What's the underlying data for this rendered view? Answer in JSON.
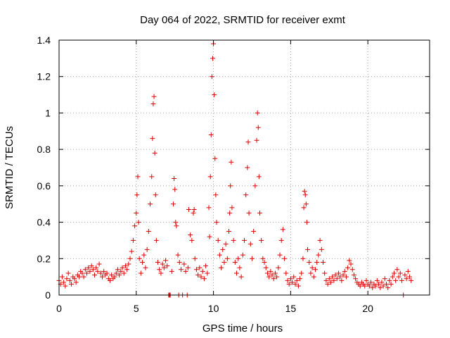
{
  "chart_data": {
    "type": "scatter",
    "title": "Day 064 of 2022, SRMTID for receiver exmt",
    "xlabel": "GPS time / hours",
    "ylabel": "SRMTID / TECUs",
    "xlim": [
      0,
      24
    ],
    "ylim": [
      0,
      1.4
    ],
    "xticks": [
      0,
      5,
      10,
      15,
      20
    ],
    "xtick_labels": [
      "0",
      "5",
      "10",
      "15",
      "20"
    ],
    "yticks": [
      0,
      0.2,
      0.4,
      0.6,
      0.8,
      1,
      1.2,
      1.4
    ],
    "ytick_labels": [
      "0",
      "0.2",
      "0.4",
      "0.6",
      "0.8",
      "1",
      "1.2",
      "1.4"
    ],
    "grid": true,
    "marker": "+",
    "color": "#e00000",
    "series": [
      {
        "name": "SRMTID",
        "points": [
          [
            0.0,
            0.08
          ],
          [
            0.1,
            0.06
          ],
          [
            0.2,
            0.1
          ],
          [
            0.3,
            0.07
          ],
          [
            0.4,
            0.05
          ],
          [
            0.5,
            0.09
          ],
          [
            0.6,
            0.12
          ],
          [
            0.7,
            0.08
          ],
          [
            0.8,
            0.06
          ],
          [
            0.9,
            0.1
          ],
          [
            1.0,
            0.09
          ],
          [
            1.1,
            0.07
          ],
          [
            1.2,
            0.11
          ],
          [
            1.3,
            0.1
          ],
          [
            1.4,
            0.13
          ],
          [
            1.5,
            0.12
          ],
          [
            1.6,
            0.1
          ],
          [
            1.7,
            0.14
          ],
          [
            1.8,
            0.12
          ],
          [
            1.9,
            0.15
          ],
          [
            2.0,
            0.13
          ],
          [
            2.1,
            0.16
          ],
          [
            2.2,
            0.14
          ],
          [
            2.3,
            0.11
          ],
          [
            2.4,
            0.15
          ],
          [
            2.5,
            0.13
          ],
          [
            2.6,
            0.17
          ],
          [
            2.7,
            0.12
          ],
          [
            2.8,
            0.1
          ],
          [
            2.9,
            0.13
          ],
          [
            3.0,
            0.11
          ],
          [
            3.1,
            0.12
          ],
          [
            3.2,
            0.09
          ],
          [
            3.3,
            0.08
          ],
          [
            3.4,
            0.11
          ],
          [
            3.5,
            0.09
          ],
          [
            3.6,
            0.1
          ],
          [
            3.7,
            0.12
          ],
          [
            3.8,
            0.14
          ],
          [
            3.9,
            0.11
          ],
          [
            4.0,
            0.13
          ],
          [
            4.1,
            0.15
          ],
          [
            4.2,
            0.12
          ],
          [
            4.3,
            0.16
          ],
          [
            4.4,
            0.14
          ],
          [
            4.5,
            0.17
          ],
          [
            4.6,
            0.2
          ],
          [
            4.7,
            0.24
          ],
          [
            4.8,
            0.3
          ],
          [
            4.9,
            0.38
          ],
          [
            5.0,
            0.45
          ],
          [
            5.05,
            0.55
          ],
          [
            5.1,
            0.65
          ],
          [
            5.15,
            0.4
          ],
          [
            5.2,
            0.2
          ],
          [
            5.3,
            0.12
          ],
          [
            5.4,
            0.18
          ],
          [
            5.5,
            0.22
          ],
          [
            5.6,
            0.15
          ],
          [
            5.7,
            0.25
          ],
          [
            5.8,
            0.35
          ],
          [
            5.9,
            0.5
          ],
          [
            6.0,
            0.65
          ],
          [
            6.05,
            0.86
          ],
          [
            6.1,
            1.05
          ],
          [
            6.15,
            1.09
          ],
          [
            6.2,
            0.78
          ],
          [
            6.25,
            0.55
          ],
          [
            6.3,
            0.3
          ],
          [
            6.4,
            0.18
          ],
          [
            6.5,
            0.14
          ],
          [
            6.6,
            0.12
          ],
          [
            6.7,
            0.17
          ],
          [
            6.8,
            0.15
          ],
          [
            6.9,
            0.19
          ],
          [
            7.0,
            0.16
          ],
          [
            7.1,
            0.0
          ],
          [
            7.15,
            0.0
          ],
          [
            7.2,
            0.0
          ],
          [
            7.3,
            0.13
          ],
          [
            7.4,
            0.5
          ],
          [
            7.45,
            0.64
          ],
          [
            7.5,
            0.58
          ],
          [
            7.55,
            0.4
          ],
          [
            7.6,
            0.38
          ],
          [
            7.7,
            0.22
          ],
          [
            7.75,
            0.0
          ],
          [
            7.8,
            0.18
          ],
          [
            7.9,
            0.14
          ],
          [
            8.0,
            0.0
          ],
          [
            8.1,
            0.17
          ],
          [
            8.2,
            0.13
          ],
          [
            8.3,
            0.0
          ],
          [
            8.35,
            0.15
          ],
          [
            8.4,
            0.47
          ],
          [
            8.5,
            0.33
          ],
          [
            8.6,
            0.3
          ],
          [
            8.7,
            0.45
          ],
          [
            8.75,
            0.47
          ],
          [
            8.8,
            0.2
          ],
          [
            8.9,
            0.14
          ],
          [
            9.0,
            0.11
          ],
          [
            9.1,
            0.15
          ],
          [
            9.2,
            0.1
          ],
          [
            9.3,
            0.13
          ],
          [
            9.4,
            0.09
          ],
          [
            9.5,
            0.16
          ],
          [
            9.6,
            0.12
          ],
          [
            9.7,
            0.48
          ],
          [
            9.75,
            0.32
          ],
          [
            9.8,
            0.65
          ],
          [
            9.85,
            0.88
          ],
          [
            9.9,
            1.2
          ],
          [
            9.95,
            1.3
          ],
          [
            10.0,
            1.38
          ],
          [
            10.05,
            1.1
          ],
          [
            10.1,
            0.75
          ],
          [
            10.15,
            0.55
          ],
          [
            10.2,
            0.4
          ],
          [
            10.3,
            0.3
          ],
          [
            10.4,
            0.22
          ],
          [
            10.5,
            0.15
          ],
          [
            10.6,
            0.25
          ],
          [
            10.7,
            0.18
          ],
          [
            10.8,
            0.28
          ],
          [
            10.9,
            0.2
          ],
          [
            11.0,
            0.35
          ],
          [
            11.05,
            0.45
          ],
          [
            11.1,
            0.6
          ],
          [
            11.15,
            0.73
          ],
          [
            11.2,
            0.48
          ],
          [
            11.3,
            0.3
          ],
          [
            11.4,
            0.18
          ],
          [
            11.5,
            0.12
          ],
          [
            11.6,
            0.2
          ],
          [
            11.7,
            0.15
          ],
          [
            11.8,
            0.1
          ],
          [
            11.9,
            0.22
          ],
          [
            12.0,
            0.3
          ],
          [
            12.1,
            0.55
          ],
          [
            12.2,
            0.7
          ],
          [
            12.25,
            0.84
          ],
          [
            12.3,
            0.45
          ],
          [
            12.4,
            0.28
          ],
          [
            12.5,
            0.2
          ],
          [
            12.6,
            0.35
          ],
          [
            12.7,
            0.6
          ],
          [
            12.8,
            0.85
          ],
          [
            12.85,
            1.0
          ],
          [
            12.9,
            0.92
          ],
          [
            12.95,
            0.65
          ],
          [
            13.0,
            0.45
          ],
          [
            13.1,
            0.3
          ],
          [
            13.2,
            0.2
          ],
          [
            13.3,
            0.18
          ],
          [
            13.4,
            0.15
          ],
          [
            13.5,
            0.12
          ],
          [
            13.6,
            0.1
          ],
          [
            13.7,
            0.13
          ],
          [
            13.8,
            0.11
          ],
          [
            13.9,
            0.09
          ],
          [
            14.0,
            0.12
          ],
          [
            14.1,
            0.1
          ],
          [
            14.2,
            0.15
          ],
          [
            14.3,
            0.22
          ],
          [
            14.4,
            0.3
          ],
          [
            14.5,
            0.36
          ],
          [
            14.6,
            0.2
          ],
          [
            14.7,
            0.12
          ],
          [
            14.8,
            0.08
          ],
          [
            14.9,
            0.06
          ],
          [
            15.0,
            0.09
          ],
          [
            15.1,
            0.07
          ],
          [
            15.2,
            0.1
          ],
          [
            15.3,
            0.06
          ],
          [
            15.4,
            0.08
          ],
          [
            15.5,
            0.05
          ],
          [
            15.6,
            0.09
          ],
          [
            15.7,
            0.12
          ],
          [
            15.8,
            0.2
          ],
          [
            15.85,
            0.48
          ],
          [
            15.9,
            0.57
          ],
          [
            15.95,
            0.55
          ],
          [
            16.0,
            0.5
          ],
          [
            16.05,
            0.4
          ],
          [
            16.1,
            0.25
          ],
          [
            16.2,
            0.18
          ],
          [
            16.3,
            0.12
          ],
          [
            16.4,
            0.15
          ],
          [
            16.5,
            0.1
          ],
          [
            16.6,
            0.14
          ],
          [
            16.7,
            0.18
          ],
          [
            16.8,
            0.22
          ],
          [
            16.9,
            0.3
          ],
          [
            17.0,
            0.25
          ],
          [
            17.1,
            0.18
          ],
          [
            17.2,
            0.12
          ],
          [
            17.3,
            0.08
          ],
          [
            17.4,
            0.06
          ],
          [
            17.5,
            0.09
          ],
          [
            17.6,
            0.07
          ],
          [
            17.7,
            0.1
          ],
          [
            17.8,
            0.08
          ],
          [
            17.9,
            0.11
          ],
          [
            18.0,
            0.09
          ],
          [
            18.1,
            0.12
          ],
          [
            18.2,
            0.1
          ],
          [
            18.3,
            0.08
          ],
          [
            18.4,
            0.11
          ],
          [
            18.5,
            0.13
          ],
          [
            18.6,
            0.1
          ],
          [
            18.7,
            0.15
          ],
          [
            18.8,
            0.19
          ],
          [
            18.9,
            0.17
          ],
          [
            19.0,
            0.14
          ],
          [
            19.1,
            0.11
          ],
          [
            19.2,
            0.09
          ],
          [
            19.3,
            0.07
          ],
          [
            19.4,
            0.06
          ],
          [
            19.5,
            0.05
          ],
          [
            19.6,
            0.07
          ],
          [
            19.7,
            0.06
          ],
          [
            19.8,
            0.05
          ],
          [
            19.9,
            0.08
          ],
          [
            20.0,
            0.06
          ],
          [
            20.1,
            0.05
          ],
          [
            20.2,
            0.07
          ],
          [
            20.3,
            0.04
          ],
          [
            20.4,
            0.06
          ],
          [
            20.5,
            0.05
          ],
          [
            20.6,
            0.08
          ],
          [
            20.7,
            0.06
          ],
          [
            20.8,
            0.04
          ],
          [
            20.9,
            0.07
          ],
          [
            21.0,
            0.05
          ],
          [
            21.1,
            0.09
          ],
          [
            21.2,
            0.06
          ],
          [
            21.3,
            0.04
          ],
          [
            21.4,
            0.08
          ],
          [
            21.5,
            0.06
          ],
          [
            21.6,
            0.1
          ],
          [
            21.7,
            0.12
          ],
          [
            21.8,
            0.08
          ],
          [
            21.9,
            0.14
          ],
          [
            22.0,
            0.1
          ],
          [
            22.1,
            0.12
          ],
          [
            22.2,
            0.08
          ],
          [
            22.3,
            0.0
          ],
          [
            22.4,
            0.11
          ],
          [
            22.5,
            0.09
          ],
          [
            22.6,
            0.13
          ],
          [
            22.7,
            0.1
          ],
          [
            22.8,
            0.08
          ]
        ]
      }
    ]
  }
}
